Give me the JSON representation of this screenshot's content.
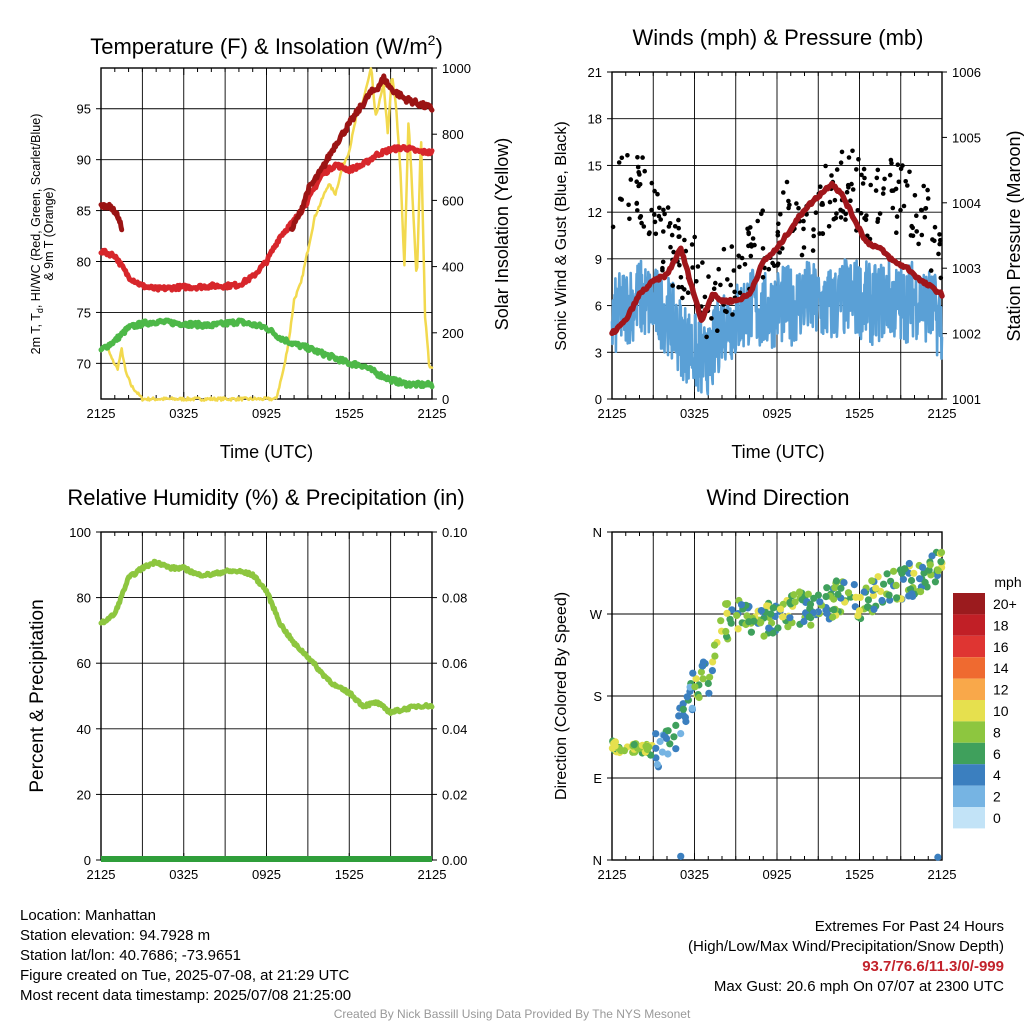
{
  "colors": {
    "temp_2m": "#d7262b",
    "dewpoint": "#4db848",
    "heat_index": "#9b1414",
    "temp_9m": "#f39c12",
    "insolation": "#f2d94e",
    "humidity": "#8dc63f",
    "precip": "#2f9e3a",
    "wind": "#5aa0d6",
    "gust": "#000000",
    "pressure": "#a0161b",
    "highlight": "#c2222b"
  },
  "time_ticks": [
    "2125",
    "0325",
    "0925",
    "1525",
    "2125"
  ],
  "chart_data": [
    {
      "type": "line",
      "title": "Temperature (F) & Insolation (W/m²)",
      "xlabel": "Time (UTC)",
      "ylabel": "2m T, Td, HI/WC (Red, Green, Scarlet/Blue) & 9m T (Orange)",
      "y2label": "Solar Insolation (Yellow)",
      "x_range": [
        0,
        24
      ],
      "ylim": [
        66.5,
        99
      ],
      "y2lim": [
        0,
        1000
      ],
      "y_ticks": [
        70,
        75,
        80,
        85,
        90,
        95
      ],
      "y2_ticks": [
        0,
        200,
        400,
        600,
        800,
        1000
      ],
      "series": [
        {
          "name": "2m T",
          "axis": "left",
          "x": [
            0,
            1,
            2,
            3,
            4,
            5,
            6,
            7,
            8,
            9,
            10,
            11,
            12,
            13,
            14,
            15,
            16,
            17,
            18,
            19,
            20,
            21,
            22,
            23,
            24
          ],
          "values": [
            81,
            80.6,
            78.5,
            77.6,
            77.3,
            77.4,
            77.5,
            77.5,
            77.6,
            77.6,
            77.7,
            78.5,
            80,
            82.5,
            84,
            86,
            88.5,
            89.5,
            89,
            89.5,
            90.5,
            91,
            91.2,
            90.8,
            90.7
          ]
        },
        {
          "name": "Td",
          "axis": "left",
          "x": [
            0,
            1,
            2,
            3,
            4,
            5,
            6,
            7,
            8,
            9,
            10,
            11,
            12,
            13,
            14,
            15,
            16,
            17,
            18,
            19,
            20,
            21,
            22,
            23,
            24
          ],
          "values": [
            71.3,
            72.2,
            73.5,
            73.9,
            74.1,
            74,
            73.9,
            73.8,
            73.7,
            73.9,
            74.1,
            73.8,
            73.5,
            72.5,
            71.9,
            71.5,
            71,
            70.5,
            70,
            69.8,
            69,
            68.4,
            68,
            67.9,
            67.9
          ]
        },
        {
          "name": "HI",
          "axis": "left",
          "x": [
            0,
            0.7,
            1.2,
            1.5,
            13.8,
            14.5,
            15,
            16,
            17,
            18,
            19,
            19.5,
            20,
            20.5,
            21,
            21.5,
            22,
            23,
            24
          ],
          "values": [
            85.5,
            85.4,
            84.5,
            83.3,
            83,
            85,
            87,
            89,
            91.5,
            93.5,
            95.5,
            96.5,
            97,
            98,
            97,
            96.5,
            96,
            95.5,
            95
          ]
        },
        {
          "name": "Solar Insolation",
          "axis": "right",
          "x": [
            0,
            0.4,
            0.8,
            1.2,
            1.5,
            1.8,
            2.2,
            3,
            6,
            9,
            12.7,
            13,
            13.3,
            13.7,
            14,
            14.5,
            15,
            15.5,
            16,
            16.5,
            17,
            17.5,
            18,
            18.5,
            19,
            19.3,
            19.6,
            19.9,
            20.2,
            20.5,
            20.8,
            21.1,
            21.4,
            21.7,
            22,
            22.3,
            22.6,
            22.9,
            23.2,
            23.5,
            23.8,
            24
          ],
          "values": [
            150,
            160,
            120,
            90,
            150,
            80,
            40,
            0,
            0,
            0,
            0,
            50,
            100,
            200,
            300,
            350,
            450,
            550,
            600,
            650,
            620,
            700,
            750,
            850,
            900,
            950,
            1000,
            850,
            900,
            950,
            800,
            980,
            880,
            700,
            400,
            850,
            600,
            350,
            800,
            250,
            100,
            90
          ]
        }
      ]
    },
    {
      "type": "line",
      "title": "Winds (mph) & Pressure (mb)",
      "xlabel": "Time (UTC)",
      "ylabel": "Sonic Wind & Gust (Blue, Black)",
      "y2label": "Station Pressure (Maroon)",
      "x_range": [
        0,
        24
      ],
      "ylim": [
        0,
        21
      ],
      "y2lim": [
        1001,
        1006
      ],
      "y_ticks": [
        0,
        3,
        6,
        9,
        12,
        15,
        18,
        21
      ],
      "y2_ticks": [
        1001,
        1002,
        1003,
        1004,
        1005,
        1006
      ],
      "series": [
        {
          "name": "Sonic Wind",
          "axis": "left",
          "x": [
            0,
            1,
            2,
            3,
            4,
            5,
            6,
            7,
            8,
            9,
            10,
            11,
            12,
            13,
            14,
            15,
            16,
            17,
            18,
            19,
            20,
            21,
            22,
            23,
            24
          ],
          "values": [
            5,
            6,
            6.5,
            6,
            5.5,
            4,
            3,
            2,
            5,
            5,
            6,
            5.5,
            6,
            6,
            6.5,
            6,
            6,
            6.5,
            6.5,
            6,
            6.5,
            6,
            6.5,
            6,
            5
          ]
        },
        {
          "name": "Gust",
          "axis": "left",
          "type": "scatter",
          "x": [
            0,
            1,
            2,
            3,
            4,
            5,
            6,
            7,
            8,
            9,
            10,
            11,
            12,
            13,
            14,
            15,
            16,
            17,
            18,
            19,
            20,
            21,
            22,
            23,
            24
          ],
          "values": [
            12,
            14,
            14,
            12,
            10,
            9,
            8,
            6,
            7,
            8,
            9,
            10,
            11,
            12,
            11,
            12,
            13,
            14,
            13,
            12,
            13,
            13,
            12,
            11,
            9
          ]
        },
        {
          "name": "Station Pressure",
          "axis": "right",
          "x": [
            0,
            1,
            2,
            3,
            4,
            5,
            5.7,
            6.5,
            7.3,
            8,
            9,
            10,
            11,
            12,
            13,
            14,
            15,
            16,
            16.8,
            17.5,
            18.5,
            19.5,
            20.5,
            21.5,
            22.5,
            23.3,
            24
          ],
          "values": [
            1002,
            1002.2,
            1002.6,
            1002.8,
            1002.9,
            1003.3,
            1002.8,
            1002.2,
            1002.6,
            1002.5,
            1002.5,
            1002.6,
            1003.1,
            1003.3,
            1003.6,
            1003.9,
            1004.1,
            1004.3,
            1004.1,
            1003.8,
            1003.4,
            1003.3,
            1003.1,
            1003,
            1002.8,
            1002.7,
            1002.6
          ]
        }
      ]
    },
    {
      "type": "line",
      "title": "Relative Humidity (%) & Precipitation (in)",
      "ylabel": "Percent & Precipitation",
      "x_range": [
        0,
        24
      ],
      "ylim": [
        0,
        100
      ],
      "y2lim": [
        0,
        0.1
      ],
      "y_ticks": [
        0,
        20,
        40,
        60,
        80,
        100
      ],
      "y2_ticks": [
        "0.00",
        "0.02",
        "0.04",
        "0.06",
        "0.08",
        "0.10"
      ],
      "series": [
        {
          "name": "Relative Humidity",
          "axis": "left",
          "x": [
            0,
            1,
            2,
            3,
            4,
            5,
            6,
            7,
            8,
            9,
            10,
            11,
            12,
            13,
            14,
            15,
            16,
            17,
            18,
            19,
            20,
            21,
            22,
            23,
            24
          ],
          "values": [
            72,
            75,
            86,
            89,
            91,
            89,
            89,
            87,
            87,
            88,
            88,
            87,
            82,
            72,
            66,
            62,
            57,
            53,
            51,
            47,
            48,
            45,
            46,
            47,
            47
          ]
        },
        {
          "name": "Precipitation",
          "axis": "right",
          "x": [
            0,
            24
          ],
          "values": [
            0,
            0
          ]
        }
      ]
    },
    {
      "type": "scatter",
      "title": "Wind Direction",
      "ylabel": "Direction (Colored By Speed)",
      "x_range": [
        0,
        24
      ],
      "y_ticks": [
        "N",
        "E",
        "S",
        "W",
        "N"
      ],
      "y_range_deg": [
        0,
        360
      ],
      "legend": {
        "title": "mph",
        "labels": [
          "20+",
          "18",
          "16",
          "14",
          "12",
          "10",
          "8",
          "6",
          "4",
          "2",
          "0"
        ],
        "colors": [
          "#9b1b1e",
          "#c11f26",
          "#df3532",
          "#ef6a30",
          "#f9a84a",
          "#e6e04e",
          "#8dc63f",
          "#3fa05c",
          "#3b7fbf",
          "#76b4e3",
          "#c2e3f7"
        ]
      },
      "series": [
        {
          "name": "Direction",
          "x": [
            0,
            1,
            2,
            3,
            4,
            5,
            5.5,
            6,
            7,
            8,
            9,
            10,
            11,
            12,
            13,
            14,
            15,
            16,
            17,
            18,
            19,
            20,
            21,
            22,
            23,
            24
          ],
          "values": [
            125,
            122,
            122,
            120,
            122,
            150,
            160,
            195,
            200,
            260,
            265,
            270,
            265,
            270,
            275,
            280,
            275,
            285,
            290,
            280,
            290,
            295,
            300,
            310,
            320,
            320
          ]
        }
      ]
    }
  ],
  "info_left": [
    "Location: Manhattan",
    "Station elevation: 94.7928 m",
    "Station lat/lon: 40.7686; -73.9651",
    "Figure created on Tue, 2025-07-08, at 21:29 UTC",
    "Most recent data timestamp: 2025/07/08 21:25:00"
  ],
  "info_right": {
    "title": "Extremes For Past 24 Hours",
    "subtitle": "(High/Low/Max Wind/Precipitation/Snow Depth)",
    "values": "93.7/76.6/11.3/0/-999",
    "max_gust": "Max Gust: 20.6 mph On 07/07 at 2300 UTC"
  },
  "credit": "Created By Nick Bassill Using Data Provided By The NYS Mesonet"
}
